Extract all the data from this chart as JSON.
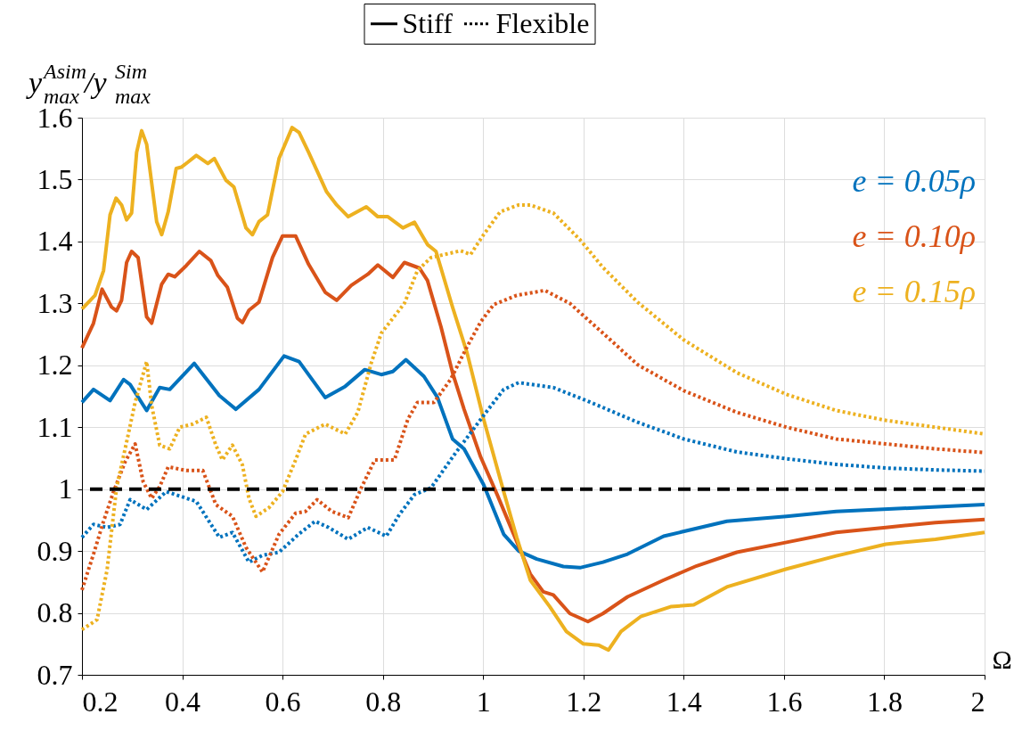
{
  "chart_data": {
    "type": "line",
    "xlabel": "Ω",
    "ylabel": "y$^{Asim}$$_{max}$/y$^{Sim}$$_{max}$",
    "annotations": [
      "Stiff",
      "Flexible"
    ],
    "xlim": [
      0.2,
      2
    ],
    "xticks": [
      0.2,
      0.4,
      0.6,
      0.8,
      1,
      1.2,
      1.4,
      1.6,
      1.8,
      2
    ],
    "ylim": [
      0.7,
      1.6
    ],
    "yticks": [
      0.7,
      0.8,
      0.9,
      1,
      1.1,
      1.2,
      1.3,
      1.4,
      1.5,
      1.6
    ],
    "grid": true,
    "legend": "top",
    "marker": "none",
    "ref_lines": [
      {
        "axis": "y",
        "value": 1,
        "color": "#000000",
        "line_style": "dashed"
      }
    ],
    "series": [
      {
        "name": "e = 0.05ρ",
        "color": "#0072bd",
        "line_style": "solid",
        "x": [
          0.2,
          0.223,
          0.256,
          0.283,
          0.296,
          0.329,
          0.355,
          0.375,
          0.424,
          0.474,
          0.507,
          0.553,
          0.603,
          0.633,
          0.685,
          0.725,
          0.764,
          0.797,
          0.82,
          0.846,
          0.882,
          0.909,
          0.939,
          0.962,
          1.001,
          1.041,
          1.071,
          1.107,
          1.16,
          1.193,
          1.239,
          1.288,
          1.36,
          1.486,
          1.605,
          1.704,
          1.869,
          2.0
        ],
        "values": [
          1.14,
          1.161,
          1.143,
          1.177,
          1.169,
          1.127,
          1.164,
          1.161,
          1.203,
          1.151,
          1.129,
          1.161,
          1.215,
          1.206,
          1.148,
          1.166,
          1.193,
          1.185,
          1.19,
          1.209,
          1.182,
          1.148,
          1.081,
          1.065,
          1.007,
          0.927,
          0.9,
          0.887,
          0.875,
          0.873,
          0.882,
          0.895,
          0.924,
          0.948,
          0.956,
          0.964,
          0.97,
          0.975
        ]
      },
      {
        "name": "e = 0.10ρ",
        "color": "#d95319",
        "line_style": "solid",
        "x": [
          0.2,
          0.223,
          0.24,
          0.259,
          0.269,
          0.279,
          0.289,
          0.299,
          0.312,
          0.329,
          0.339,
          0.359,
          0.372,
          0.385,
          0.408,
          0.434,
          0.457,
          0.471,
          0.49,
          0.51,
          0.52,
          0.533,
          0.553,
          0.58,
          0.6,
          0.626,
          0.652,
          0.685,
          0.708,
          0.737,
          0.77,
          0.79,
          0.82,
          0.843,
          0.873,
          0.889,
          0.916,
          0.939,
          0.962,
          0.995,
          1.028,
          1.061,
          1.094,
          1.12,
          1.14,
          1.173,
          1.209,
          1.239,
          1.288,
          1.36,
          1.426,
          1.506,
          1.605,
          1.704,
          1.803,
          1.902,
          2.0
        ],
        "values": [
          1.228,
          1.268,
          1.323,
          1.294,
          1.288,
          1.305,
          1.366,
          1.384,
          1.374,
          1.278,
          1.268,
          1.331,
          1.347,
          1.343,
          1.361,
          1.384,
          1.369,
          1.345,
          1.326,
          1.276,
          1.269,
          1.289,
          1.302,
          1.374,
          1.409,
          1.409,
          1.363,
          1.318,
          1.305,
          1.329,
          1.347,
          1.362,
          1.342,
          1.366,
          1.357,
          1.337,
          1.262,
          1.188,
          1.129,
          1.052,
          0.991,
          0.927,
          0.863,
          0.834,
          0.829,
          0.799,
          0.786,
          0.799,
          0.826,
          0.853,
          0.876,
          0.898,
          0.914,
          0.93,
          0.938,
          0.946,
          0.951
        ]
      },
      {
        "name": "e = 0.15ρ",
        "color": "#edb120",
        "line_style": "solid",
        "x": [
          0.2,
          0.226,
          0.243,
          0.256,
          0.268,
          0.279,
          0.289,
          0.299,
          0.309,
          0.319,
          0.329,
          0.349,
          0.359,
          0.372,
          0.388,
          0.398,
          0.411,
          0.428,
          0.451,
          0.464,
          0.487,
          0.503,
          0.527,
          0.54,
          0.553,
          0.57,
          0.593,
          0.619,
          0.633,
          0.652,
          0.688,
          0.708,
          0.731,
          0.767,
          0.79,
          0.81,
          0.84,
          0.863,
          0.889,
          0.906,
          0.939,
          0.968,
          1.001,
          1.041,
          1.067,
          1.094,
          1.133,
          1.166,
          1.2,
          1.23,
          1.25,
          1.275,
          1.314,
          1.374,
          1.42,
          1.486,
          1.605,
          1.704,
          1.803,
          1.902,
          2.0
        ],
        "values": [
          1.291,
          1.313,
          1.353,
          1.443,
          1.47,
          1.459,
          1.435,
          1.446,
          1.544,
          1.579,
          1.557,
          1.432,
          1.411,
          1.448,
          1.518,
          1.52,
          1.528,
          1.539,
          1.526,
          1.534,
          1.499,
          1.488,
          1.422,
          1.411,
          1.432,
          1.443,
          1.534,
          1.584,
          1.576,
          1.544,
          1.48,
          1.459,
          1.44,
          1.456,
          1.44,
          1.44,
          1.422,
          1.431,
          1.395,
          1.384,
          1.294,
          1.22,
          1.113,
          0.996,
          0.922,
          0.853,
          0.81,
          0.77,
          0.75,
          0.748,
          0.74,
          0.77,
          0.794,
          0.81,
          0.813,
          0.842,
          0.871,
          0.892,
          0.911,
          0.919,
          0.93
        ]
      },
      {
        "color": "#0072bd",
        "line_style": "dotted",
        "x": [
          0.2,
          0.223,
          0.25,
          0.276,
          0.296,
          0.329,
          0.368,
          0.428,
          0.474,
          0.5,
          0.533,
          0.56,
          0.593,
          0.632,
          0.665,
          0.692,
          0.731,
          0.77,
          0.807,
          0.833,
          0.863,
          0.896,
          0.942,
          1.001,
          1.041,
          1.071,
          1.14,
          1.209,
          1.308,
          1.4,
          1.506,
          1.605,
          1.704,
          1.803,
          1.902,
          2.0
        ],
        "values": [
          0.922,
          0.943,
          0.938,
          0.943,
          0.983,
          0.967,
          0.996,
          0.98,
          0.922,
          0.93,
          0.882,
          0.893,
          0.898,
          0.927,
          0.948,
          0.938,
          0.919,
          0.938,
          0.924,
          0.959,
          0.991,
          1.002,
          1.055,
          1.119,
          1.161,
          1.172,
          1.164,
          1.142,
          1.108,
          1.081,
          1.06,
          1.049,
          1.04,
          1.034,
          1.031,
          1.029
        ]
      },
      {
        "color": "#d95319",
        "line_style": "dotted",
        "x": [
          0.2,
          0.223,
          0.243,
          0.263,
          0.286,
          0.306,
          0.322,
          0.339,
          0.355,
          0.372,
          0.408,
          0.441,
          0.467,
          0.5,
          0.527,
          0.56,
          0.593,
          0.626,
          0.646,
          0.669,
          0.698,
          0.731,
          0.757,
          0.784,
          0.823,
          0.85,
          0.869,
          0.902,
          0.935,
          0.968,
          0.995,
          1.021,
          1.067,
          1.123,
          1.173,
          1.239,
          1.308,
          1.4,
          1.506,
          1.605,
          1.704,
          1.803,
          1.902,
          2.0
        ],
        "values": [
          0.837,
          0.895,
          0.948,
          0.996,
          1.044,
          1.073,
          1.012,
          0.985,
          1.004,
          1.036,
          1.03,
          1.03,
          0.975,
          0.956,
          0.906,
          0.866,
          0.927,
          0.961,
          0.964,
          0.983,
          0.964,
          0.954,
          1.002,
          1.047,
          1.047,
          1.113,
          1.14,
          1.14,
          1.177,
          1.23,
          1.27,
          1.298,
          1.313,
          1.321,
          1.3,
          1.252,
          1.201,
          1.159,
          1.124,
          1.1,
          1.081,
          1.073,
          1.065,
          1.059
        ]
      },
      {
        "color": "#edb120",
        "line_style": "dotted",
        "x": [
          0.2,
          0.23,
          0.25,
          0.269,
          0.289,
          0.306,
          0.329,
          0.339,
          0.355,
          0.375,
          0.395,
          0.421,
          0.448,
          0.467,
          0.48,
          0.5,
          0.52,
          0.533,
          0.547,
          0.573,
          0.6,
          0.626,
          0.646,
          0.685,
          0.725,
          0.75,
          0.777,
          0.797,
          0.843,
          0.869,
          0.896,
          0.955,
          0.975,
          1.001,
          1.034,
          1.071,
          1.094,
          1.14,
          1.193,
          1.239,
          1.308,
          1.4,
          1.506,
          1.605,
          1.704,
          1.803,
          1.902,
          2.0
        ],
        "values": [
          0.773,
          0.789,
          0.869,
          1.002,
          1.076,
          1.14,
          1.206,
          1.135,
          1.071,
          1.065,
          1.1,
          1.105,
          1.116,
          1.071,
          1.047,
          1.071,
          1.039,
          0.985,
          0.956,
          0.97,
          0.996,
          1.047,
          1.089,
          1.105,
          1.089,
          1.124,
          1.204,
          1.252,
          1.3,
          1.353,
          1.374,
          1.385,
          1.379,
          1.411,
          1.448,
          1.459,
          1.459,
          1.446,
          1.403,
          1.358,
          1.302,
          1.241,
          1.188,
          1.153,
          1.127,
          1.111,
          1.1,
          1.089
        ]
      }
    ]
  }
}
